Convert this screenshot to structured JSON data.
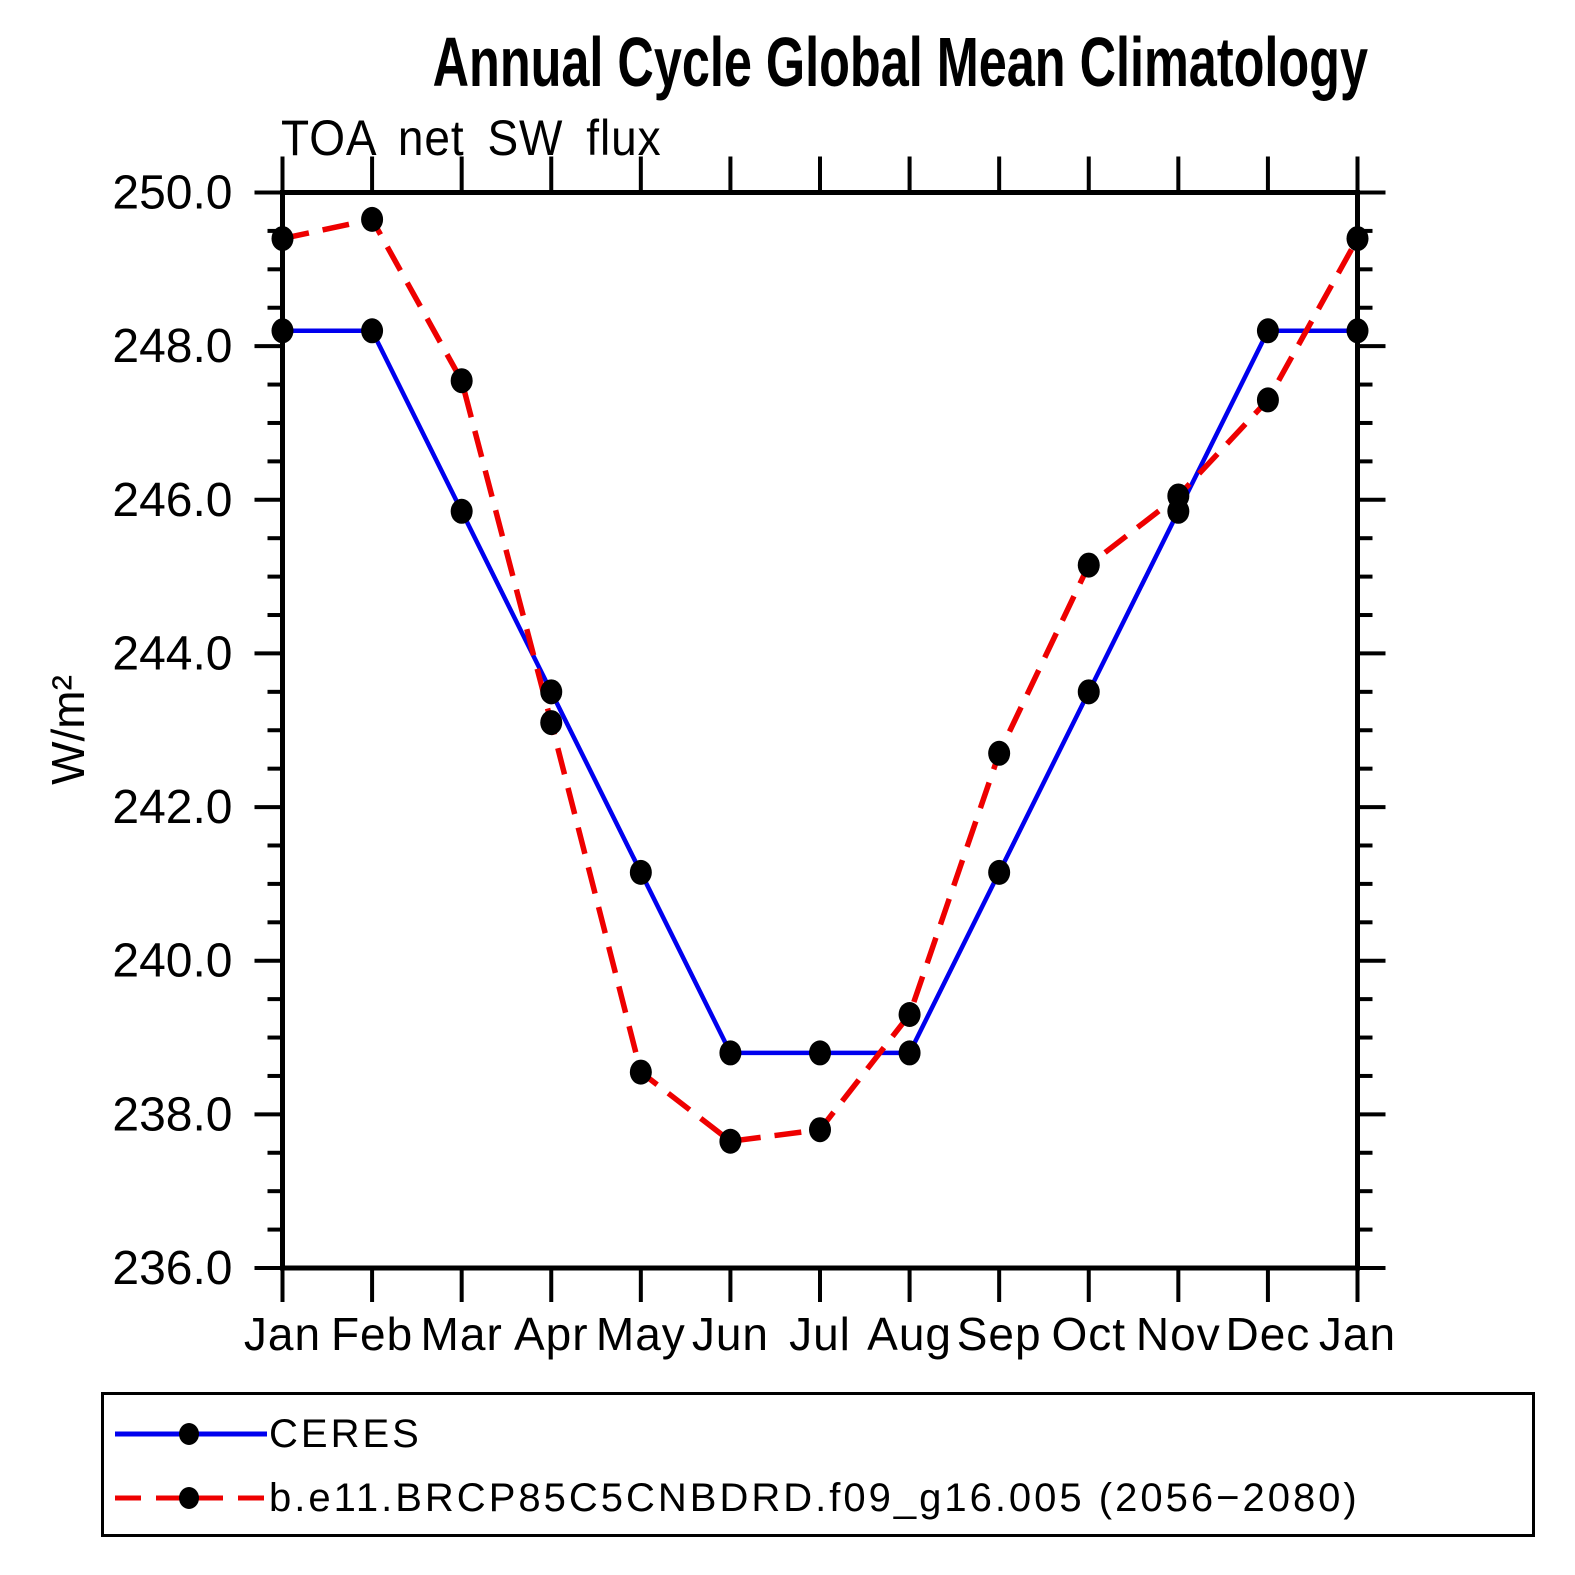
{
  "title": "Annual Cycle Global Mean Climatology",
  "subtitle": "TOA net SW flux",
  "ylabel": "W/m²",
  "chart_data": {
    "type": "line",
    "x_categories": [
      "Jan",
      "Feb",
      "Mar",
      "Apr",
      "May",
      "Jun",
      "Jul",
      "Aug",
      "Sep",
      "Oct",
      "Nov",
      "Dec",
      "Jan"
    ],
    "ylim": [
      236.0,
      250.0
    ],
    "y_major_step": 2.0,
    "y_minor_step": 0.5,
    "y_tick_labels": [
      "236.0",
      "238.0",
      "240.0",
      "242.0",
      "244.0",
      "246.0",
      "248.0",
      "250.0"
    ],
    "grid": false,
    "legend_position": "bottom",
    "marker": "black-dot",
    "marker_color": "#000000",
    "axis_color": "#000000",
    "series": [
      {
        "name": "CERES",
        "color": "#0000ee",
        "style": "solid",
        "values": [
          248.2,
          248.2,
          245.85,
          243.5,
          241.15,
          238.8,
          238.8,
          238.8,
          241.15,
          243.5,
          245.85,
          248.2,
          248.2
        ]
      },
      {
        "name": "b.e11.BRCP85C5CNBDRD.f09_g16.005 (2056−2080)",
        "color": "#ee0000",
        "style": "dashed",
        "values": [
          249.4,
          249.65,
          247.55,
          243.1,
          238.55,
          237.65,
          237.8,
          239.3,
          242.7,
          245.15,
          246.05,
          247.3,
          249.4
        ]
      }
    ]
  }
}
